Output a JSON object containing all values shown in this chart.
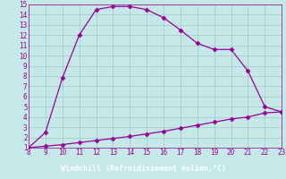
{
  "xlabel": "Windchill (Refroidissement éolien,°C)",
  "xlim": [
    8,
    23
  ],
  "ylim": [
    1,
    15
  ],
  "xticks": [
    8,
    9,
    10,
    11,
    12,
    13,
    14,
    15,
    16,
    17,
    18,
    19,
    20,
    21,
    22,
    23
  ],
  "yticks": [
    1,
    2,
    3,
    4,
    5,
    6,
    7,
    8,
    9,
    10,
    11,
    12,
    13,
    14,
    15
  ],
  "bg_color": "#c5e8e8",
  "grid_color": "#a0c8c8",
  "line_color": "#990099",
  "xlabel_bg": "#8080a0",
  "line1_x": [
    8,
    9,
    10,
    11,
    12,
    13,
    14,
    15,
    16,
    17,
    18,
    19,
    20,
    21,
    22,
    23
  ],
  "line1_y": [
    1.0,
    2.5,
    7.8,
    12.0,
    14.5,
    14.8,
    14.8,
    14.5,
    13.7,
    12.5,
    11.2,
    10.6,
    10.6,
    8.5,
    5.0,
    4.5
  ],
  "line2_x": [
    8,
    9,
    10,
    11,
    12,
    13,
    14,
    15,
    16,
    17,
    18,
    19,
    20,
    21,
    22,
    23
  ],
  "line2_y": [
    1.0,
    1.15,
    1.3,
    1.5,
    1.7,
    1.9,
    2.1,
    2.35,
    2.6,
    2.9,
    3.2,
    3.5,
    3.8,
    4.0,
    4.4,
    4.5
  ],
  "marker": "D",
  "markersize": 2.5,
  "linewidth": 0.9,
  "tick_fontsize": 5.5,
  "label_fontsize": 6.0,
  "figsize": [
    3.2,
    2.0
  ],
  "dpi": 100
}
